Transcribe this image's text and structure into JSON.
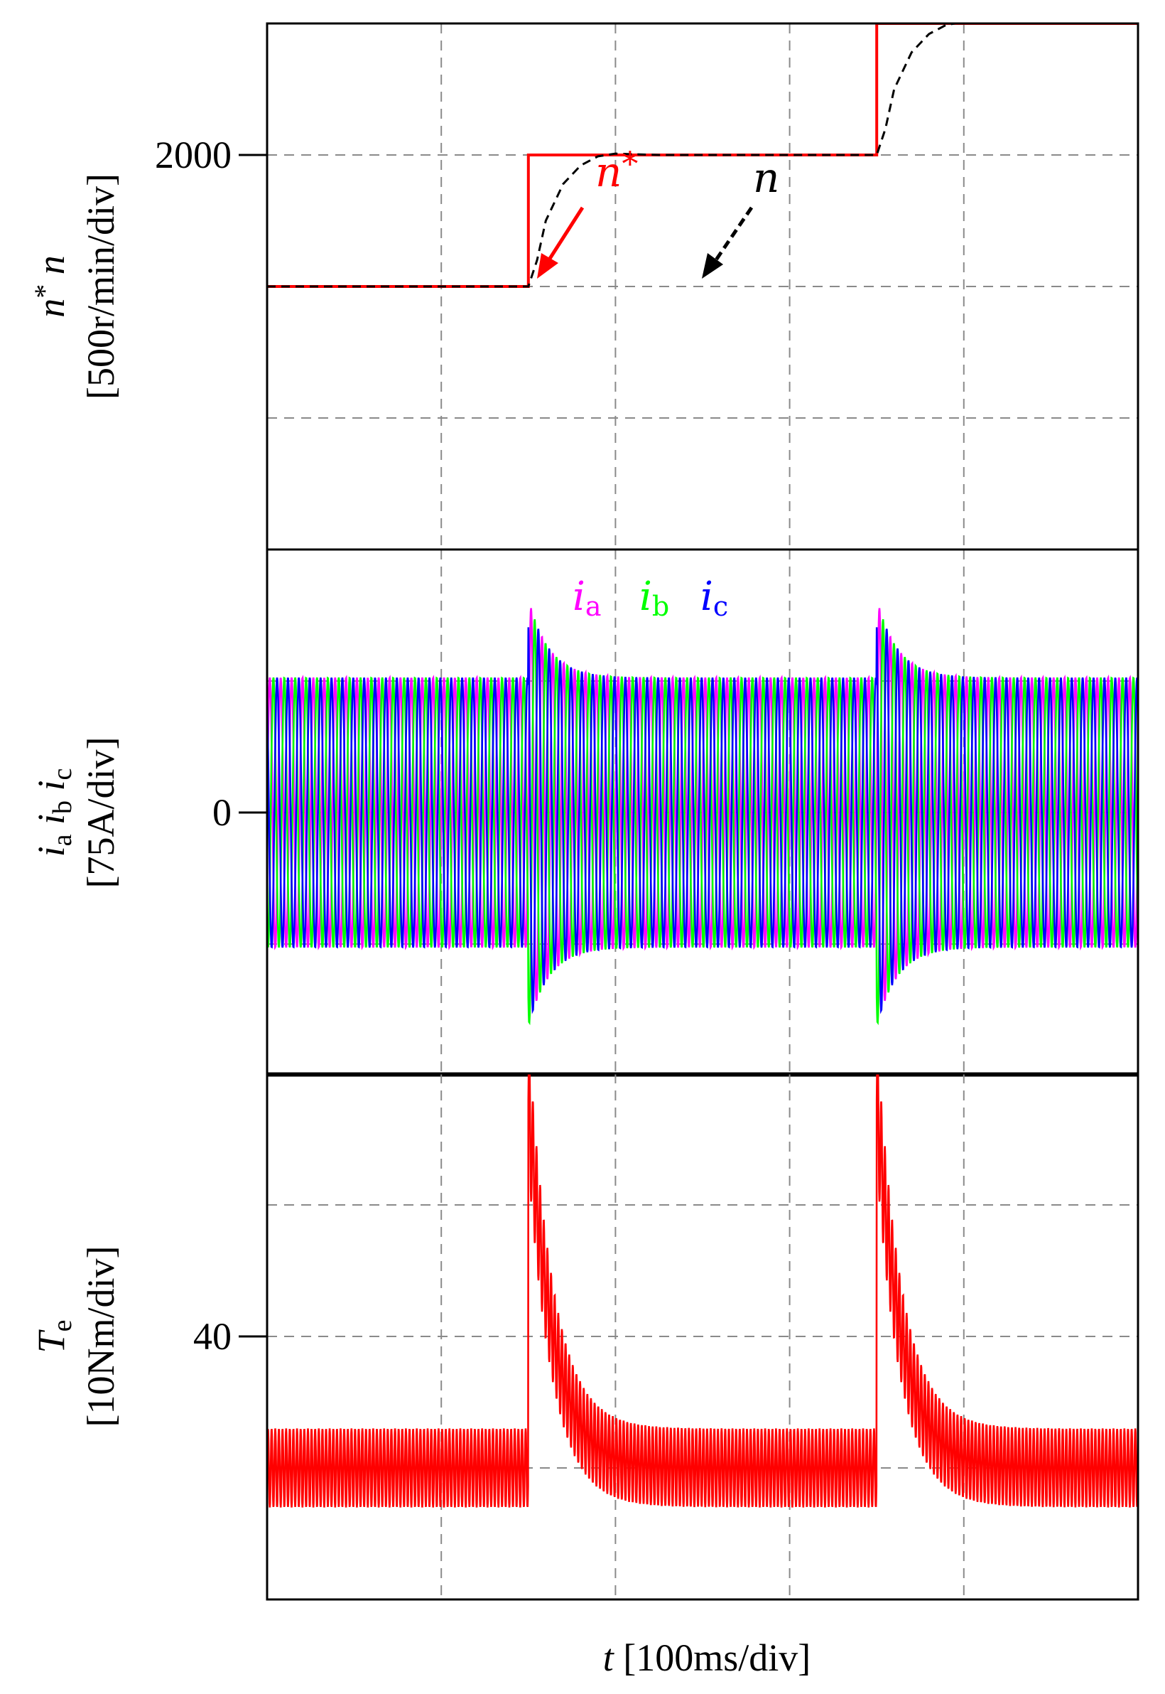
{
  "chart_data": [
    {
      "type": "line",
      "panel": "speed",
      "ylabel_line1": "n* n",
      "ylabel_line2": "[500r/min/div]",
      "ytick_label": "2000",
      "ytick_value": 2000,
      "y_per_div": 500,
      "ylim": [
        500,
        2500
      ],
      "x_per_div_ms": 100,
      "xlim_ms": [
        0,
        500
      ],
      "grid": true,
      "series": [
        {
          "name": "n*",
          "color": "#ff0000",
          "style": "solid",
          "x_ms": [
            0,
            150,
            150,
            350,
            350,
            500
          ],
          "y": [
            1500,
            1500,
            2000,
            2000,
            2500,
            2500
          ]
        },
        {
          "name": "n",
          "color": "#000000",
          "style": "dashed",
          "x_ms": [
            0,
            150,
            155,
            160,
            170,
            180,
            190,
            200,
            225,
            250,
            300,
            350,
            355,
            360,
            370,
            380,
            390,
            400,
            420,
            450,
            500
          ],
          "y": [
            1500,
            1500,
            1600,
            1750,
            1890,
            1960,
            1995,
            2005,
            2000,
            2000,
            2000,
            2000,
            2100,
            2250,
            2390,
            2460,
            2495,
            2505,
            2505,
            2500,
            2500
          ]
        }
      ],
      "annotations": [
        {
          "text_base": "n",
          "text_sup": "*",
          "color": "#ff0000"
        },
        {
          "text_base": "n",
          "text_sup": "",
          "color": "#000000"
        }
      ]
    },
    {
      "type": "line",
      "panel": "current",
      "ylabel_line1": "ia ib ic",
      "ylabel_line2": "[75A/div]",
      "ytick_label": "0",
      "ytick_value": 0,
      "y_per_div": 75,
      "ylim": [
        -150,
        150
      ],
      "x_per_div_ms": 100,
      "xlim_ms": [
        0,
        500
      ],
      "grid": true,
      "steady_amplitude_A": 77,
      "peak_at_step_A": 122,
      "steps_ms": [
        150,
        350
      ],
      "series": [
        {
          "name": "ia",
          "base": "i",
          "sub": "a",
          "color": "#ff00ff",
          "phase_deg": 0
        },
        {
          "name": "ib",
          "base": "i",
          "sub": "b",
          "color": "#00ff00",
          "phase_deg": -120
        },
        {
          "name": "ic",
          "base": "i",
          "sub": "c",
          "color": "#0000ff",
          "phase_deg": 120
        }
      ]
    },
    {
      "type": "line",
      "panel": "torque",
      "ylabel_line1": "Te",
      "ylabel_line2": "[10Nm/div]",
      "ytick_label": "40",
      "ytick_value": 40,
      "y_per_div": 10,
      "ylim": [
        20,
        60
      ],
      "x_per_div_ms": 100,
      "xlim_ms": [
        0,
        500
      ],
      "grid": true,
      "steady_mean_Nm": 30,
      "steady_ripple_Nm": 3,
      "peak_at_step_Nm": 58,
      "steps_ms": [
        150,
        350
      ],
      "series": [
        {
          "name": "Te",
          "color": "#ff0000"
        }
      ]
    }
  ],
  "xlabel_var": "t",
  "xlabel_unit": "[100ms/div]"
}
